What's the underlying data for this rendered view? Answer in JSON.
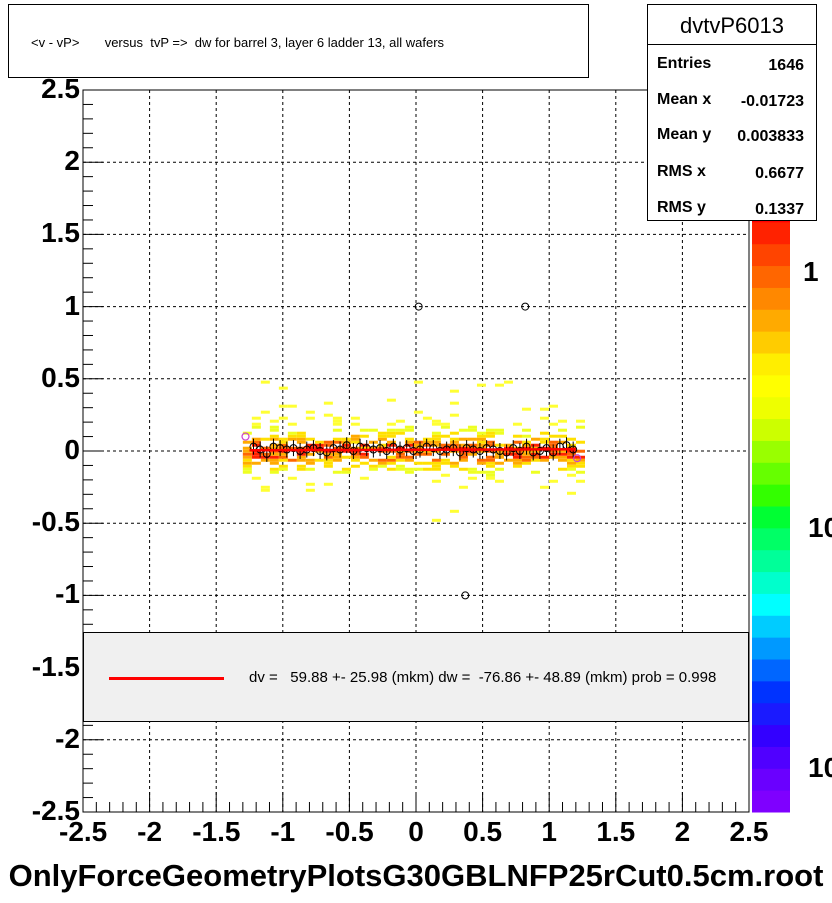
{
  "title": "<v - vP>       versus  tvP =>  dw for barrel 3, layer 6 ladder 13, all wafers",
  "stats": {
    "name": "dvtvP6013",
    "rows": [
      {
        "label": "Entries",
        "value": "1646"
      },
      {
        "label": "Mean x",
        "value": "-0.01723"
      },
      {
        "label": "Mean y",
        "value": "0.003833"
      },
      {
        "label": "RMS x",
        "value": "0.6677"
      },
      {
        "label": "RMS y",
        "value": "0.1337"
      }
    ]
  },
  "legend": {
    "text": "dv =   59.88 +- 25.98 (mkm) dw =  -76.86 +- 48.89 (mkm) prob = 0.998",
    "color": "#ff0000"
  },
  "footer": "OnlyForceGeometryPlotsG30GBLNFP25rCut0.5cm.root",
  "chart_data": {
    "type": "heatmap",
    "xlim": [
      -2.5,
      2.5
    ],
    "ylim": [
      -2.5,
      2.5
    ],
    "x_ticks": [
      "-2.5",
      "-2",
      "-1.5",
      "-1",
      "-0.5",
      "0",
      "0.5",
      "1",
      "1.5",
      "2",
      "2.5"
    ],
    "y_ticks": [
      "2.5",
      "2",
      "1.5",
      "1",
      "0.5",
      "0",
      "-0.5",
      "-1",
      "-1.5",
      "-2",
      "-2.5"
    ],
    "grid": true,
    "colorbar_labels": [
      "1",
      "10",
      "10"
    ],
    "outliers": [
      [
        0.02,
        1.0
      ],
      [
        0.82,
        1.0
      ],
      [
        0.37,
        -1.0
      ]
    ],
    "profile_points": {
      "x": [
        -1.22,
        -1.17,
        -1.12,
        -1.07,
        -1.02,
        -0.97,
        -0.92,
        -0.87,
        -0.82,
        -0.77,
        -0.72,
        -0.67,
        -0.62,
        -0.57,
        -0.52,
        -0.47,
        -0.42,
        -0.37,
        -0.32,
        -0.27,
        -0.22,
        -0.17,
        -0.12,
        -0.07,
        -0.02,
        0.03,
        0.08,
        0.13,
        0.18,
        0.23,
        0.28,
        0.33,
        0.38,
        0.43,
        0.48,
        0.53,
        0.58,
        0.63,
        0.68,
        0.73,
        0.78,
        0.83,
        0.88,
        0.93,
        0.98,
        1.03,
        1.08,
        1.13,
        1.18
      ],
      "y": [
        0.03,
        0.01,
        -0.02,
        0.03,
        0.02,
        0.01,
        0.02,
        0.0,
        0.01,
        0.02,
        0.0,
        -0.01,
        0.02,
        0.01,
        0.04,
        0.0,
        0.03,
        0.02,
        0.01,
        0.02,
        0.0,
        0.03,
        0.01,
        0.02,
        0.0,
        0.01,
        0.03,
        0.02,
        0.0,
        0.01,
        0.02,
        -0.01,
        0.02,
        0.01,
        0.0,
        0.02,
        0.01,
        0.0,
        -0.01,
        0.02,
        0.0,
        0.03,
        -0.01,
        0.0,
        0.02,
        -0.01,
        0.03,
        0.04,
        0.01
      ]
    },
    "fit_line": {
      "x": [
        -1.25,
        1.2
      ],
      "y": [
        0.005,
        0.012
      ],
      "color": "#ff0000"
    }
  }
}
